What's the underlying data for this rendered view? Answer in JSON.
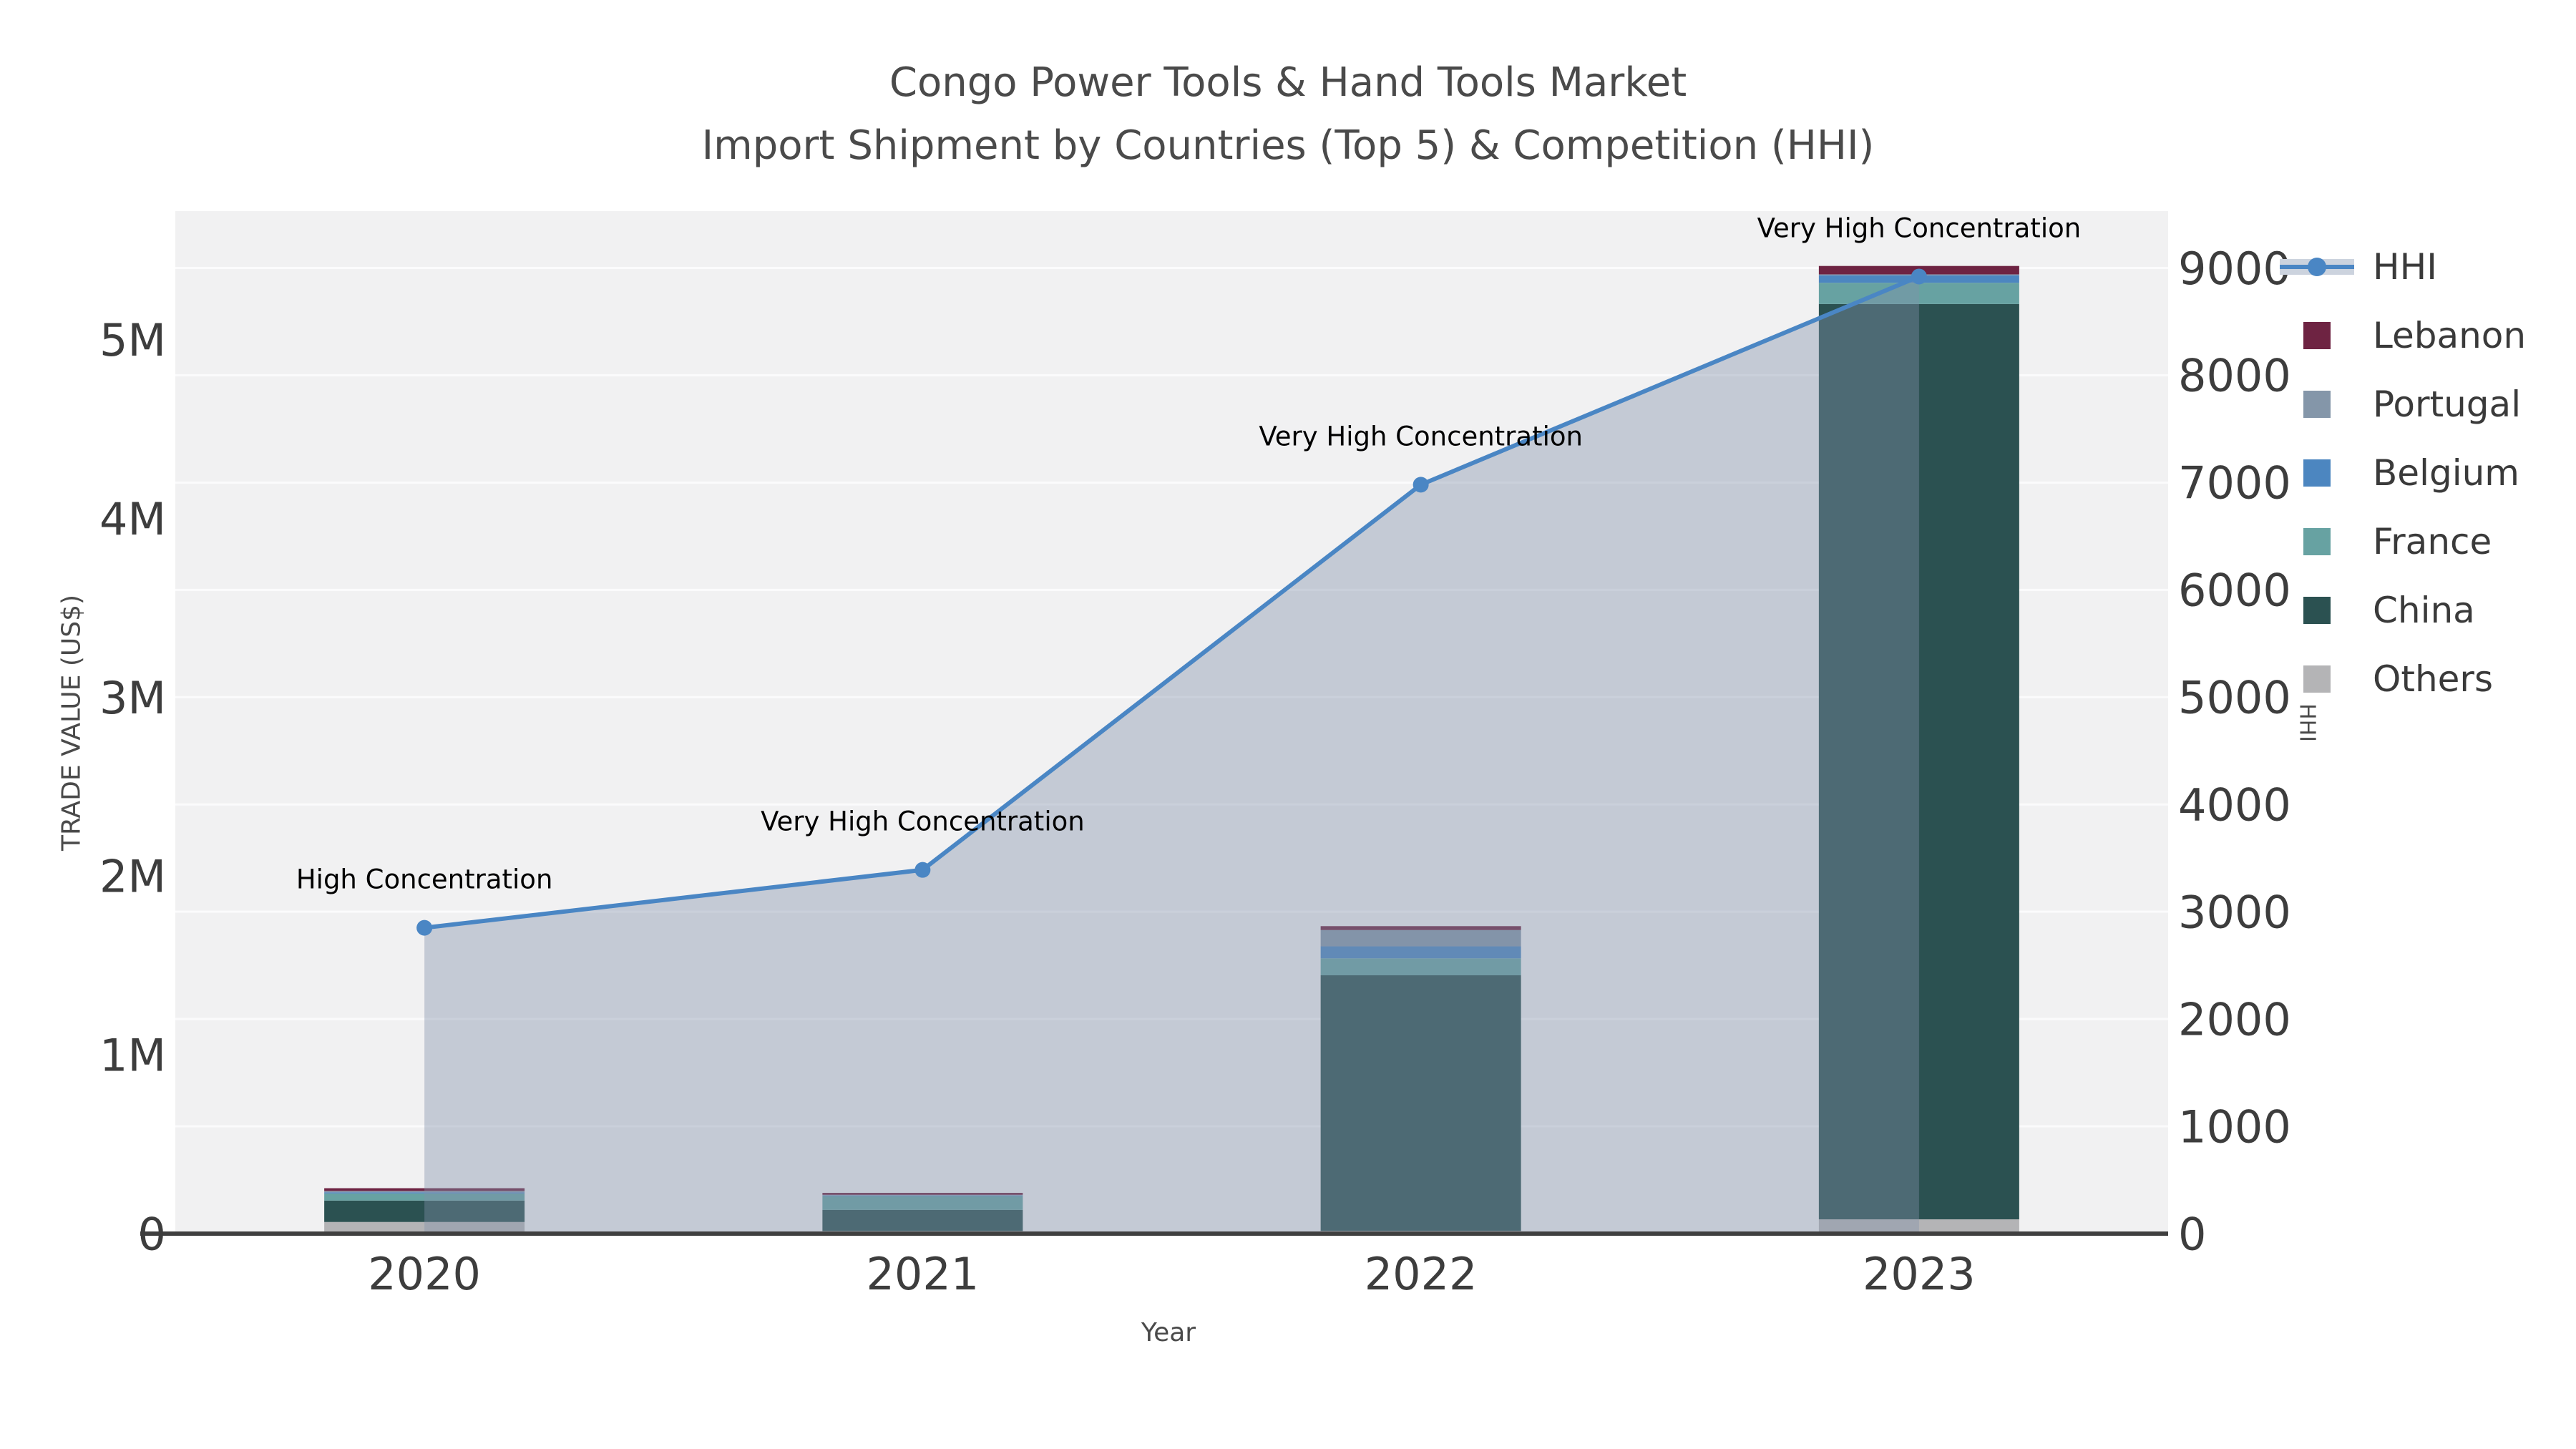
{
  "title": {
    "line1": "Congo Power Tools & Hand Tools Market",
    "line2": "Import Shipment by Countries (Top 5) & Competition (HHI)"
  },
  "axis_labels": {
    "y_left": "TRADE VALUE (US$)",
    "y_right": "HHI",
    "x": "Year"
  },
  "colors": {
    "plot_bg": "#f1f1f2",
    "grid": "#fbfbfc",
    "axis_line": "#3f3f3f",
    "tick_text": "#3d3d3d",
    "annotation_text": "#000000",
    "hhi_line": "#4a86c4",
    "hhi_area": "rgba(130,145,170,0.40)"
  },
  "legend": {
    "items": [
      {
        "label": "HHI",
        "type": "line",
        "color": "#4a86c4"
      },
      {
        "label": "Lebanon",
        "type": "swatch",
        "color": "#6e2342"
      },
      {
        "label": "Portugal",
        "type": "swatch",
        "color": "#8496a9"
      },
      {
        "label": "Belgium",
        "type": "swatch",
        "color": "#4c86c0"
      },
      {
        "label": "France",
        "type": "swatch",
        "color": "#67a2a2"
      },
      {
        "label": "China",
        "type": "swatch",
        "color": "#2b5151"
      },
      {
        "label": "Others",
        "type": "swatch",
        "color": "#b4b4b6"
      }
    ]
  },
  "chart_data": {
    "type": "combo-stacked-bar-line",
    "title": "Congo Power Tools & Hand Tools Market — Import Shipment by Countries (Top 5) & Competition (HHI)",
    "categories": [
      "2020",
      "2021",
      "2022",
      "2023"
    ],
    "bar_series": [
      {
        "name": "Others",
        "color": "#b4b4b6",
        "values": [
          65000,
          15000,
          16000,
          80000
        ]
      },
      {
        "name": "China",
        "color": "#2b5151",
        "values": [
          120000,
          118000,
          1429000,
          5120000
        ]
      },
      {
        "name": "France",
        "color": "#67a2a2",
        "values": [
          40000,
          76000,
          95000,
          119000
        ]
      },
      {
        "name": "Belgium",
        "color": "#4c86c0",
        "values": [
          6000,
          4000,
          67000,
          42000
        ]
      },
      {
        "name": "Portugal",
        "color": "#8496a9",
        "values": [
          8000,
          4000,
          91000,
          5000
        ]
      },
      {
        "name": "Lebanon",
        "color": "#6e2342",
        "values": [
          15000,
          11000,
          22000,
          47000
        ]
      }
    ],
    "bar_totals": [
      254000,
      228000,
      1720000,
      5413000
    ],
    "line_series": {
      "name": "HHI",
      "color": "#4a86c4",
      "values": [
        2850,
        3390,
        6980,
        8920
      ],
      "axis": "right"
    },
    "annotations": [
      "High Concentration",
      "Very High Concentration",
      "Very High Concentration",
      "Very High Concentration"
    ],
    "y_left": {
      "label": "TRADE VALUE (US$)",
      "tick_labels": [
        "0",
        "1M",
        "2M",
        "3M",
        "4M",
        "5M"
      ],
      "tick_values": [
        0,
        1000000,
        2000000,
        3000000,
        4000000,
        5000000
      ],
      "max": 5720000
    },
    "y_right": {
      "label": "HHI",
      "tick_labels": [
        "0",
        "1000",
        "2000",
        "3000",
        "4000",
        "5000",
        "6000",
        "7000",
        "8000",
        "9000"
      ],
      "tick_values": [
        0,
        1000,
        2000,
        3000,
        4000,
        5000,
        6000,
        7000,
        8000,
        9000
      ],
      "grid_values": [
        1000,
        2000,
        3000,
        4000,
        5000,
        6000,
        7000,
        8000,
        9000
      ],
      "max": 9530
    },
    "x_ticks": [
      "2020",
      "2021",
      "2022",
      "2023"
    ],
    "legend_position": "right",
    "grid": "horizontal"
  }
}
